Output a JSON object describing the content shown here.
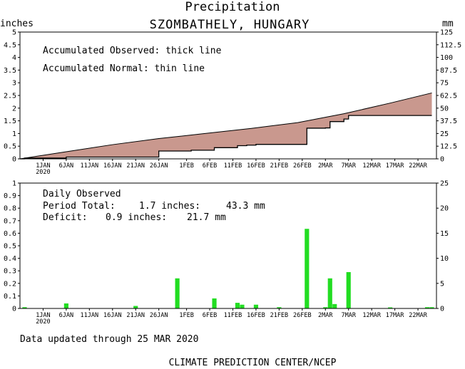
{
  "page": {
    "title": "Precipitation",
    "location": "SZOMBATHELY, HUNGARY",
    "updated": "Data updated through 25 MAR 2020",
    "footer": "CLIMATE PREDICTION CENTER/NCEP"
  },
  "colors": {
    "fill": "#c9988e",
    "bar": "#22dd22",
    "line": "#000000"
  },
  "x_axis": {
    "ticks": [
      {
        "day": 5,
        "label": "1JAN",
        "sub": "2020"
      },
      {
        "day": 10,
        "label": "6JAN"
      },
      {
        "day": 15,
        "label": "11JAN"
      },
      {
        "day": 20,
        "label": "16JAN"
      },
      {
        "day": 25,
        "label": "21JAN"
      },
      {
        "day": 30,
        "label": "26JAN"
      },
      {
        "day": 36,
        "label": "1FEB"
      },
      {
        "day": 41,
        "label": "6FEB"
      },
      {
        "day": 46,
        "label": "11FEB"
      },
      {
        "day": 51,
        "label": "16FEB"
      },
      {
        "day": 56,
        "label": "21FEB"
      },
      {
        "day": 61,
        "label": "26FEB"
      },
      {
        "day": 66,
        "label": "2MAR"
      },
      {
        "day": 71,
        "label": "7MAR"
      },
      {
        "day": 76,
        "label": "12MAR"
      },
      {
        "day": 81,
        "label": "17MAR"
      },
      {
        "day": 86,
        "label": "22MAR"
      }
    ]
  },
  "chart_data": [
    {
      "type": "area",
      "title": "Precipitation",
      "legend": [
        "Accumulated Observed: thick line",
        "Accumulated Normal: thin line"
      ],
      "ylabel_left": "inches",
      "ylabel_right": "mm",
      "ylim": [
        0,
        5
      ],
      "ylim_right": [
        0,
        125
      ],
      "yticks_left": [
        "0",
        "0.5",
        "1",
        "1.5",
        "2",
        "2.5",
        "3",
        "3.5",
        "4",
        "4.5",
        "5"
      ],
      "yticks_right": [
        "0",
        "12.5",
        "25",
        "37.5",
        "50",
        "62.5",
        "75",
        "87.5",
        "100",
        "112.5",
        "125"
      ],
      "xlim": [
        0,
        90
      ],
      "observed": {
        "x": [
          0,
          1,
          1,
          10,
          10,
          30,
          30,
          37,
          37,
          42,
          42,
          47,
          47,
          49,
          49,
          51,
          51,
          62,
          62,
          66,
          66,
          67,
          67,
          70,
          70,
          71,
          71,
          89
        ],
        "y": [
          0,
          0,
          0.03,
          0.03,
          0.07,
          0.07,
          0.31,
          0.31,
          0.34,
          0.34,
          0.44,
          0.44,
          0.52,
          0.52,
          0.54,
          0.54,
          0.57,
          0.57,
          1.21,
          1.21,
          1.22,
          1.22,
          1.47,
          1.47,
          1.57,
          1.57,
          1.71,
          1.71
        ]
      },
      "normal": {
        "x": [
          0,
          10,
          20,
          30,
          40,
          50,
          60,
          70,
          80,
          89
        ],
        "y": [
          0,
          0.28,
          0.56,
          0.8,
          1.0,
          1.2,
          1.43,
          1.78,
          2.2,
          2.6
        ]
      }
    },
    {
      "type": "bar",
      "title": "Daily Observed",
      "ylabel_left": "inches",
      "ylabel_right": "mm",
      "ylim": [
        0,
        1
      ],
      "ylim_right": [
        0,
        25
      ],
      "yticks_left": [
        "0",
        "0.1",
        "0.2",
        "0.3",
        "0.4",
        "0.5",
        "0.6",
        "0.7",
        "0.8",
        "0.9",
        "1"
      ],
      "yticks_right": [
        "0",
        "5",
        "10",
        "15",
        "20",
        "25"
      ],
      "xlim": [
        0,
        90
      ],
      "annotations": {
        "period_total_label": "Period Total:",
        "period_total_in": "1.7 inches:",
        "period_total_mm": "43.3 mm",
        "deficit_label": "Deficit:",
        "deficit_in": "0.9 inches:",
        "deficit_mm": "21.7 mm"
      },
      "bars": [
        {
          "day": 1,
          "value": 0.01
        },
        {
          "day": 10,
          "value": 0.04
        },
        {
          "day": 25,
          "value": 0.02
        },
        {
          "day": 34,
          "value": 0.24
        },
        {
          "day": 42,
          "value": 0.08
        },
        {
          "day": 47,
          "value": 0.045
        },
        {
          "day": 48,
          "value": 0.03
        },
        {
          "day": 51,
          "value": 0.03
        },
        {
          "day": 56,
          "value": 0.01
        },
        {
          "day": 62,
          "value": 0.635
        },
        {
          "day": 66,
          "value": 0.01
        },
        {
          "day": 67,
          "value": 0.24
        },
        {
          "day": 68,
          "value": 0.035
        },
        {
          "day": 71,
          "value": 0.29
        },
        {
          "day": 80,
          "value": 0.005
        },
        {
          "day": 88,
          "value": 0.01
        },
        {
          "day": 89,
          "value": 0.01
        }
      ]
    }
  ]
}
